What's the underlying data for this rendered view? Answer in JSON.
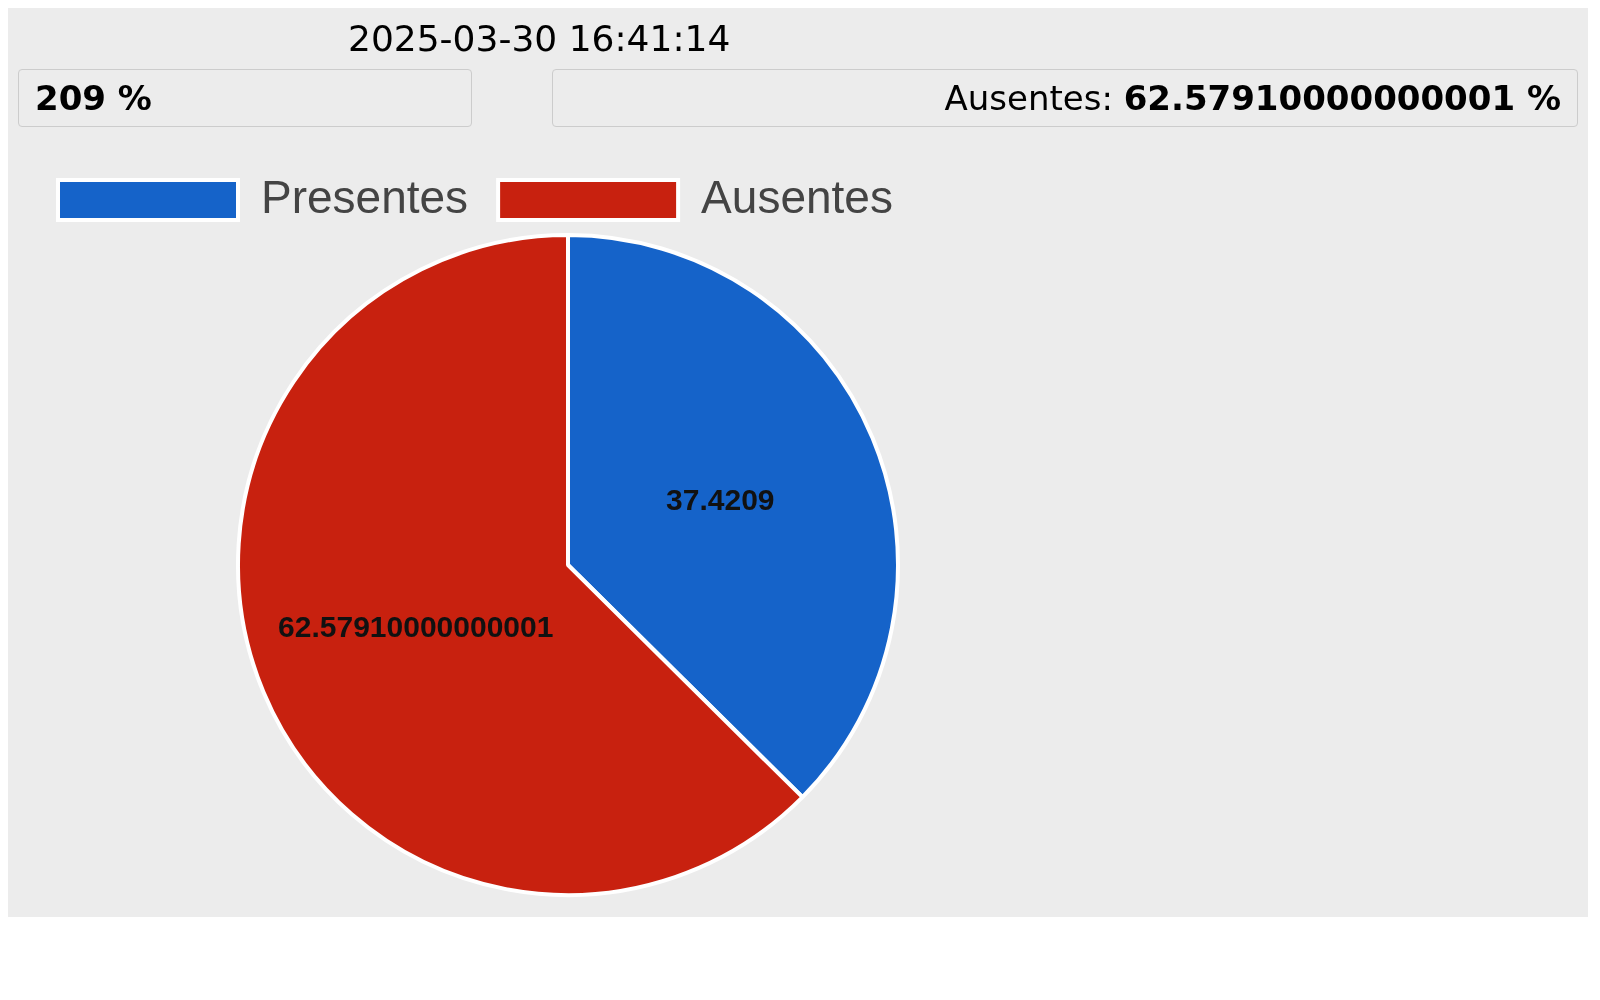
{
  "chart_data": {
    "type": "pie",
    "categories": [
      "Presentes",
      "Ausentes"
    ],
    "values": [
      37.4209,
      62.57910000000001
    ],
    "colors": [
      "#1563c9",
      "#c8210f"
    ],
    "data_labels": true,
    "legend": "top left",
    "annotations": [
      "2025-03-30 16:41:14",
      "209 %",
      "Ausentes: 62.57910000000001 %"
    ]
  }
}
